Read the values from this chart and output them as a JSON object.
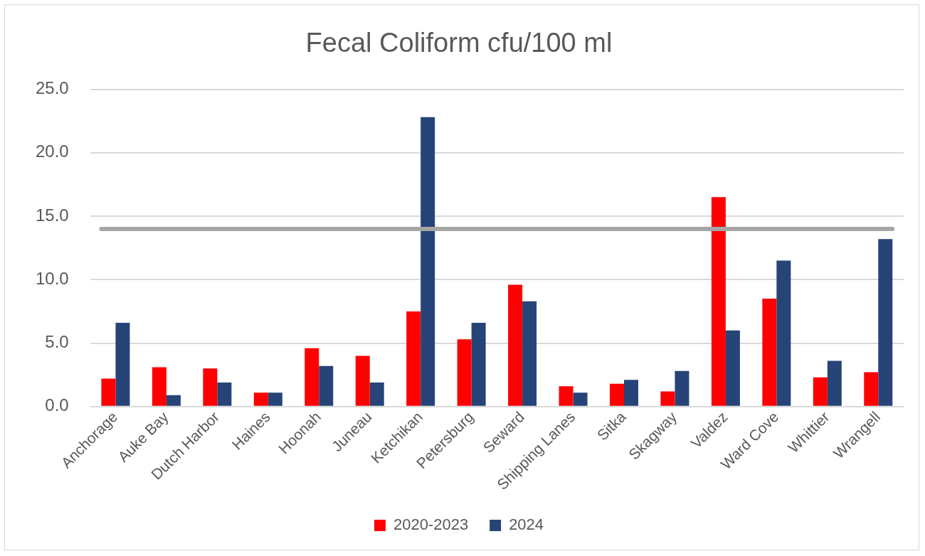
{
  "chart_data": {
    "type": "bar",
    "title": "Fecal Coliform cfu/100 ml",
    "categories": [
      "Anchorage",
      "Auke Bay",
      "Dutch Harbor",
      "Haines",
      "Hoonah",
      "Juneau",
      "Ketchikan",
      "Petersburg",
      "Seward",
      "Shipping Lanes",
      "Sitka",
      "Skagway",
      "Valdez",
      "Ward Cove",
      "Whittier",
      "Wrangell"
    ],
    "series": [
      {
        "name": "2020-2023",
        "color": "#ff0000",
        "values": [
          2.2,
          3.1,
          3.0,
          1.1,
          4.6,
          4.0,
          7.5,
          5.3,
          9.6,
          1.6,
          1.8,
          1.2,
          16.5,
          8.5,
          2.3,
          2.7
        ]
      },
      {
        "name": "2024",
        "color": "#264478",
        "values": [
          6.6,
          0.9,
          1.9,
          1.1,
          3.2,
          1.9,
          22.8,
          6.6,
          8.3,
          1.1,
          2.1,
          2.8,
          6.0,
          11.5,
          3.6,
          13.2
        ]
      }
    ],
    "ylim": [
      0,
      25
    ],
    "yticks": [
      {
        "value": 0,
        "label": "0.0"
      },
      {
        "value": 5,
        "label": "5.0"
      },
      {
        "value": 10,
        "label": "10.0"
      },
      {
        "value": 15,
        "label": "15.0"
      },
      {
        "value": 20,
        "label": "20.0"
      },
      {
        "value": 25,
        "label": "25.0"
      }
    ],
    "ref_lines": [
      {
        "axis": "y",
        "value": 14,
        "color": "#a6a6a6"
      }
    ],
    "grid": "y",
    "legend": "bottom"
  }
}
